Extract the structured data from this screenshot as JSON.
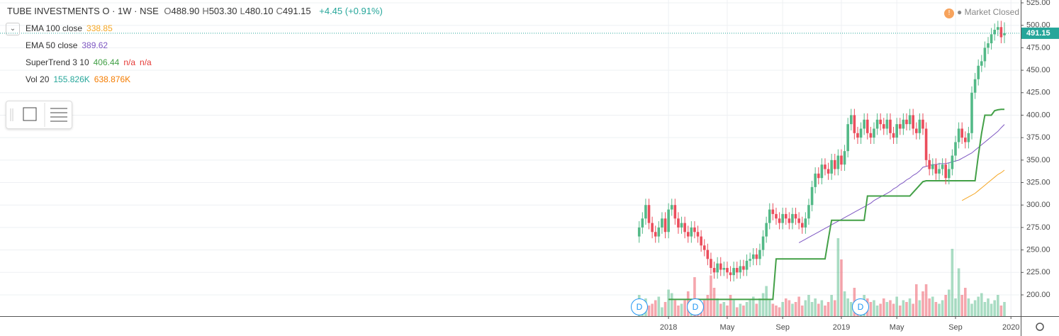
{
  "header": {
    "symbol": "TUBE INVESTMENTS O · 1W · NSE",
    "ohlc": [
      {
        "label": "O",
        "value": "488.90"
      },
      {
        "label": "H",
        "value": "503.30"
      },
      {
        "label": "L",
        "value": "480.10"
      },
      {
        "label": "C",
        "value": "491.15"
      }
    ],
    "change": "+4.45 (+0.91%)",
    "status": "Market Closed"
  },
  "legend": [
    {
      "name": "EMA 100 close",
      "values": [
        "338.85"
      ],
      "colors": [
        "#f5a623"
      ]
    },
    {
      "name": "EMA 50 close",
      "values": [
        "389.62"
      ],
      "colors": [
        "#7e57c2"
      ]
    },
    {
      "name": "SuperTrend 3 10",
      "values": [
        "406.44",
        "n/a",
        "n/a"
      ],
      "colors": [
        "#43a047",
        "#e53935",
        "#e53935"
      ]
    },
    {
      "name": "Vol 20",
      "values": [
        "155.826K",
        "638.876K"
      ],
      "colors": [
        "#26a69a",
        "#f57c00"
      ]
    }
  ],
  "dividend_label": "D",
  "chart_data": {
    "type": "candlestick",
    "up_color": "#53b987",
    "down_color": "#eb4d5c",
    "grid": true,
    "ylim": [
      200,
      525
    ],
    "xlim": [
      -196,
      117
    ],
    "yticks": [
      {
        "value": 200,
        "label": "200.00"
      },
      {
        "value": 225,
        "label": "225.00"
      },
      {
        "value": 250,
        "label": "250.00"
      },
      {
        "value": 275,
        "label": "275.00"
      },
      {
        "value": 300,
        "label": "300.00"
      },
      {
        "value": 325,
        "label": "325.00"
      },
      {
        "value": 350,
        "label": "350.00"
      },
      {
        "value": 375,
        "label": "375.00"
      },
      {
        "value": 400,
        "label": "400.00"
      },
      {
        "value": 425,
        "label": "425.00"
      },
      {
        "value": 450,
        "label": "450.00"
      },
      {
        "value": 475,
        "label": "475.00"
      },
      {
        "value": 500,
        "label": "500.00"
      },
      {
        "value": 525,
        "label": "525.00"
      }
    ],
    "xticks": [
      {
        "value": 9,
        "label": "2018"
      },
      {
        "value": 27,
        "label": "May"
      },
      {
        "value": 44,
        "label": "Sep"
      },
      {
        "value": 62,
        "label": "2019"
      },
      {
        "value": 79,
        "label": "May"
      },
      {
        "value": 97,
        "label": "Sep"
      },
      {
        "value": 114,
        "label": "2020"
      }
    ],
    "candles": [
      [
        265,
        282,
        258,
        275
      ],
      [
        275,
        292,
        268,
        285
      ],
      [
        285,
        307,
        278,
        300
      ],
      [
        300,
        307,
        273,
        280
      ],
      [
        280,
        287,
        263,
        270
      ],
      [
        270,
        277,
        258,
        265
      ],
      [
        265,
        282,
        258,
        275
      ],
      [
        275,
        292,
        268,
        285
      ],
      [
        285,
        292,
        263,
        270
      ],
      [
        270,
        302,
        263,
        295
      ],
      [
        295,
        307,
        288,
        300
      ],
      [
        300,
        307,
        278,
        285
      ],
      [
        285,
        292,
        268,
        275
      ],
      [
        275,
        287,
        268,
        280
      ],
      [
        280,
        287,
        263,
        270
      ],
      [
        270,
        277,
        258,
        265
      ],
      [
        265,
        282,
        258,
        275
      ],
      [
        275,
        282,
        263,
        270
      ],
      [
        270,
        277,
        258,
        265
      ],
      [
        265,
        272,
        248,
        255
      ],
      [
        255,
        262,
        243,
        250
      ],
      [
        250,
        257,
        233,
        240
      ],
      [
        240,
        247,
        223,
        230
      ],
      [
        230,
        237,
        218,
        225
      ],
      [
        225,
        242,
        218,
        235
      ],
      [
        235,
        242,
        221,
        228
      ],
      [
        228,
        237,
        221,
        230
      ],
      [
        230,
        237,
        218,
        225
      ],
      [
        225,
        232,
        215,
        222
      ],
      [
        222,
        237,
        215,
        230
      ],
      [
        230,
        237,
        218,
        225
      ],
      [
        225,
        239,
        218,
        232
      ],
      [
        232,
        239,
        221,
        228
      ],
      [
        228,
        245,
        221,
        238
      ],
      [
        238,
        247,
        231,
        240
      ],
      [
        240,
        252,
        233,
        245
      ],
      [
        245,
        252,
        233,
        240
      ],
      [
        240,
        257,
        233,
        250
      ],
      [
        250,
        272,
        243,
        265
      ],
      [
        265,
        287,
        258,
        280
      ],
      [
        280,
        302,
        273,
        295
      ],
      [
        295,
        302,
        283,
        290
      ],
      [
        290,
        297,
        278,
        285
      ],
      [
        285,
        292,
        273,
        280
      ],
      [
        280,
        297,
        273,
        290
      ],
      [
        290,
        297,
        278,
        285
      ],
      [
        285,
        292,
        273,
        280
      ],
      [
        280,
        297,
        273,
        290
      ],
      [
        290,
        297,
        278,
        285
      ],
      [
        285,
        292,
        273,
        280
      ],
      [
        280,
        287,
        268,
        275
      ],
      [
        275,
        292,
        268,
        285
      ],
      [
        285,
        307,
        278,
        300
      ],
      [
        300,
        327,
        293,
        320
      ],
      [
        320,
        342,
        313,
        335
      ],
      [
        335,
        342,
        323,
        330
      ],
      [
        330,
        352,
        323,
        345
      ],
      [
        345,
        352,
        333,
        340
      ],
      [
        340,
        347,
        328,
        335
      ],
      [
        335,
        357,
        328,
        350
      ],
      [
        350,
        357,
        333,
        340
      ],
      [
        340,
        362,
        333,
        355
      ],
      [
        355,
        362,
        338,
        345
      ],
      [
        345,
        367,
        338,
        360
      ],
      [
        360,
        397,
        353,
        390
      ],
      [
        390,
        407,
        383,
        400
      ],
      [
        400,
        407,
        373,
        380
      ],
      [
        380,
        387,
        368,
        375
      ],
      [
        375,
        392,
        368,
        385
      ],
      [
        385,
        402,
        378,
        395
      ],
      [
        395,
        402,
        373,
        380
      ],
      [
        380,
        387,
        368,
        375
      ],
      [
        375,
        392,
        368,
        385
      ],
      [
        385,
        402,
        378,
        395
      ],
      [
        395,
        402,
        383,
        390
      ],
      [
        390,
        397,
        378,
        385
      ],
      [
        385,
        402,
        378,
        395
      ],
      [
        395,
        402,
        373,
        380
      ],
      [
        380,
        387,
        368,
        375
      ],
      [
        375,
        397,
        368,
        390
      ],
      [
        390,
        397,
        378,
        385
      ],
      [
        385,
        402,
        378,
        395
      ],
      [
        395,
        402,
        383,
        390
      ],
      [
        390,
        407,
        383,
        400
      ],
      [
        400,
        407,
        378,
        385
      ],
      [
        385,
        392,
        373,
        380
      ],
      [
        380,
        402,
        373,
        395
      ],
      [
        395,
        402,
        378,
        385
      ],
      [
        385,
        392,
        343,
        350
      ],
      [
        350,
        357,
        333,
        340
      ],
      [
        340,
        352,
        333,
        345
      ],
      [
        345,
        352,
        328,
        335
      ],
      [
        335,
        347,
        328,
        340
      ],
      [
        340,
        352,
        333,
        345
      ],
      [
        345,
        352,
        323,
        330
      ],
      [
        330,
        347,
        323,
        340
      ],
      [
        340,
        362,
        333,
        355
      ],
      [
        355,
        377,
        348,
        370
      ],
      [
        370,
        392,
        363,
        385
      ],
      [
        385,
        392,
        368,
        375
      ],
      [
        375,
        382,
        363,
        370
      ],
      [
        370,
        387,
        363,
        380
      ],
      [
        380,
        432,
        373,
        425
      ],
      [
        425,
        447,
        418,
        440
      ],
      [
        440,
        462,
        433,
        455
      ],
      [
        455,
        467,
        448,
        460
      ],
      [
        460,
        482,
        453,
        475
      ],
      [
        475,
        487,
        468,
        480
      ],
      [
        480,
        497,
        473,
        490
      ],
      [
        490,
        502,
        483,
        495
      ],
      [
        495,
        505,
        488,
        498
      ],
      [
        498,
        505,
        480,
        486.7
      ],
      [
        488.9,
        503.3,
        480.1,
        491.15
      ]
    ],
    "volume": [
      1200,
      800,
      1000,
      600,
      700,
      900,
      1100,
      500,
      800,
      1500,
      1300,
      900,
      600,
      700,
      900,
      1400,
      800,
      2200,
      1000,
      600,
      900,
      1200,
      2300,
      1600,
      1000,
      700,
      800,
      600,
      1200,
      900,
      500,
      700,
      600,
      800,
      900,
      1100,
      700,
      1000,
      1300,
      1700,
      900,
      700,
      600,
      500,
      800,
      1000,
      900,
      700,
      800,
      1100,
      600,
      900,
      1200,
      800,
      1000,
      700,
      900,
      600,
      800,
      1200,
      900,
      4400,
      3200,
      1400,
      1000,
      800,
      1600,
      900,
      700,
      1200,
      1000,
      800,
      900,
      600,
      700,
      1000,
      800,
      900,
      700,
      1100,
      600,
      900,
      800,
      1000,
      700,
      1800,
      900,
      1400,
      1800,
      1000,
      1100,
      800,
      700,
      900,
      1200,
      1500,
      3800,
      1000,
      2700,
      1200,
      1600,
      1000,
      700,
      900,
      1100,
      1300,
      800,
      1000,
      700,
      900,
      1200,
      600,
      800
    ],
    "series": [
      {
        "name": "EMA 100 close",
        "color": "#f5a623",
        "values": [
          null,
          null,
          null,
          null,
          null,
          null,
          null,
          null,
          null,
          null,
          null,
          null,
          null,
          null,
          null,
          null,
          null,
          null,
          null,
          null,
          null,
          null,
          null,
          null,
          null,
          null,
          null,
          null,
          null,
          null,
          null,
          null,
          null,
          null,
          null,
          null,
          null,
          null,
          null,
          null,
          null,
          null,
          null,
          null,
          null,
          null,
          null,
          null,
          null,
          null,
          null,
          null,
          null,
          null,
          null,
          null,
          null,
          null,
          null,
          null,
          null,
          null,
          null,
          null,
          null,
          null,
          null,
          null,
          null,
          null,
          null,
          null,
          null,
          null,
          null,
          null,
          null,
          null,
          null,
          null,
          null,
          null,
          null,
          null,
          null,
          null,
          null,
          null,
          null,
          null,
          null,
          null,
          null,
          null,
          null,
          null,
          null,
          null,
          null,
          305,
          307,
          309,
          311,
          313,
          316,
          319,
          322,
          325,
          328,
          331,
          334,
          336,
          338.85
        ]
      },
      {
        "name": "EMA 50 close",
        "color": "#7e57c2",
        "values": [
          null,
          null,
          null,
          null,
          null,
          null,
          null,
          null,
          null,
          null,
          null,
          null,
          null,
          null,
          null,
          null,
          null,
          null,
          null,
          null,
          null,
          null,
          null,
          null,
          null,
          null,
          null,
          null,
          null,
          null,
          null,
          null,
          null,
          null,
          null,
          null,
          null,
          null,
          null,
          null,
          null,
          null,
          null,
          null,
          null,
          null,
          null,
          null,
          null,
          258,
          260,
          262,
          264,
          266,
          268,
          270,
          272,
          274,
          276,
          278,
          280,
          282,
          284,
          286,
          288,
          290,
          292,
          294,
          296,
          298,
          300,
          302,
          305,
          307,
          309,
          311,
          313,
          315,
          318,
          320,
          323,
          325,
          328,
          330,
          333,
          335,
          338,
          342,
          343,
          344,
          345,
          345,
          346,
          346,
          346,
          347,
          348,
          349,
          350,
          352,
          354,
          356,
          358,
          361,
          364,
          367,
          370,
          373,
          376,
          379,
          382,
          386,
          389.62
        ]
      },
      {
        "name": "SuperTrend 3 10",
        "color": "#43a047",
        "values": [
          null,
          null,
          null,
          null,
          null,
          null,
          null,
          null,
          null,
          195,
          195,
          195,
          195,
          195,
          195,
          195,
          195,
          195,
          195,
          195,
          195,
          195,
          195,
          195,
          195,
          195,
          195,
          195,
          195,
          195,
          195,
          195,
          195,
          195,
          195,
          195,
          195,
          195,
          195,
          195,
          195,
          195,
          240,
          240,
          240,
          240,
          240,
          240,
          240,
          240,
          240,
          240,
          240,
          240,
          240,
          240,
          240,
          240,
          262,
          283,
          283,
          283,
          283,
          283,
          283,
          283,
          283,
          283,
          283,
          283,
          310,
          310,
          310,
          310,
          310,
          310,
          310,
          310,
          310,
          310,
          310,
          310,
          310,
          310,
          314,
          318,
          322,
          326,
          327,
          327,
          327,
          327,
          327,
          327,
          327,
          327,
          327,
          327,
          327,
          327,
          327,
          327,
          327,
          327,
          355,
          380,
          400,
          400,
          400,
          405,
          406,
          406.44,
          406.44
        ]
      }
    ]
  }
}
